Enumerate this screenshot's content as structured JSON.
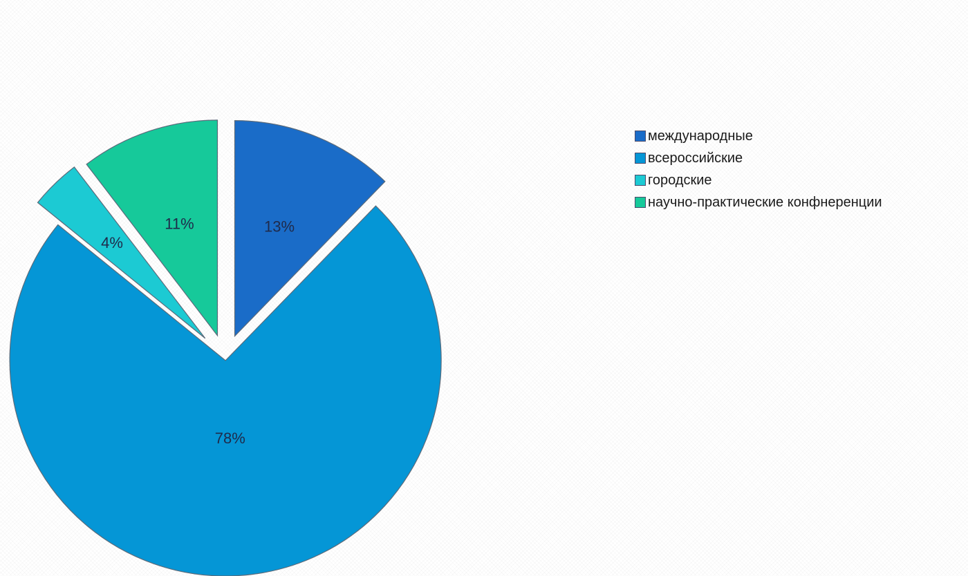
{
  "chart_data": {
    "type": "pie",
    "title": "",
    "legend_position": "right",
    "exploded": true,
    "categories": [
      "международные",
      "всероссийские",
      "городские",
      "научно-практические конфнеренции"
    ],
    "values": [
      13,
      78,
      4,
      11
    ],
    "value_labels": [
      "13%",
      "78%",
      "4%",
      "11%"
    ],
    "colors": [
      "#1a6cc8",
      "#0596d6",
      "#1ccad3",
      "#16c99a"
    ]
  }
}
